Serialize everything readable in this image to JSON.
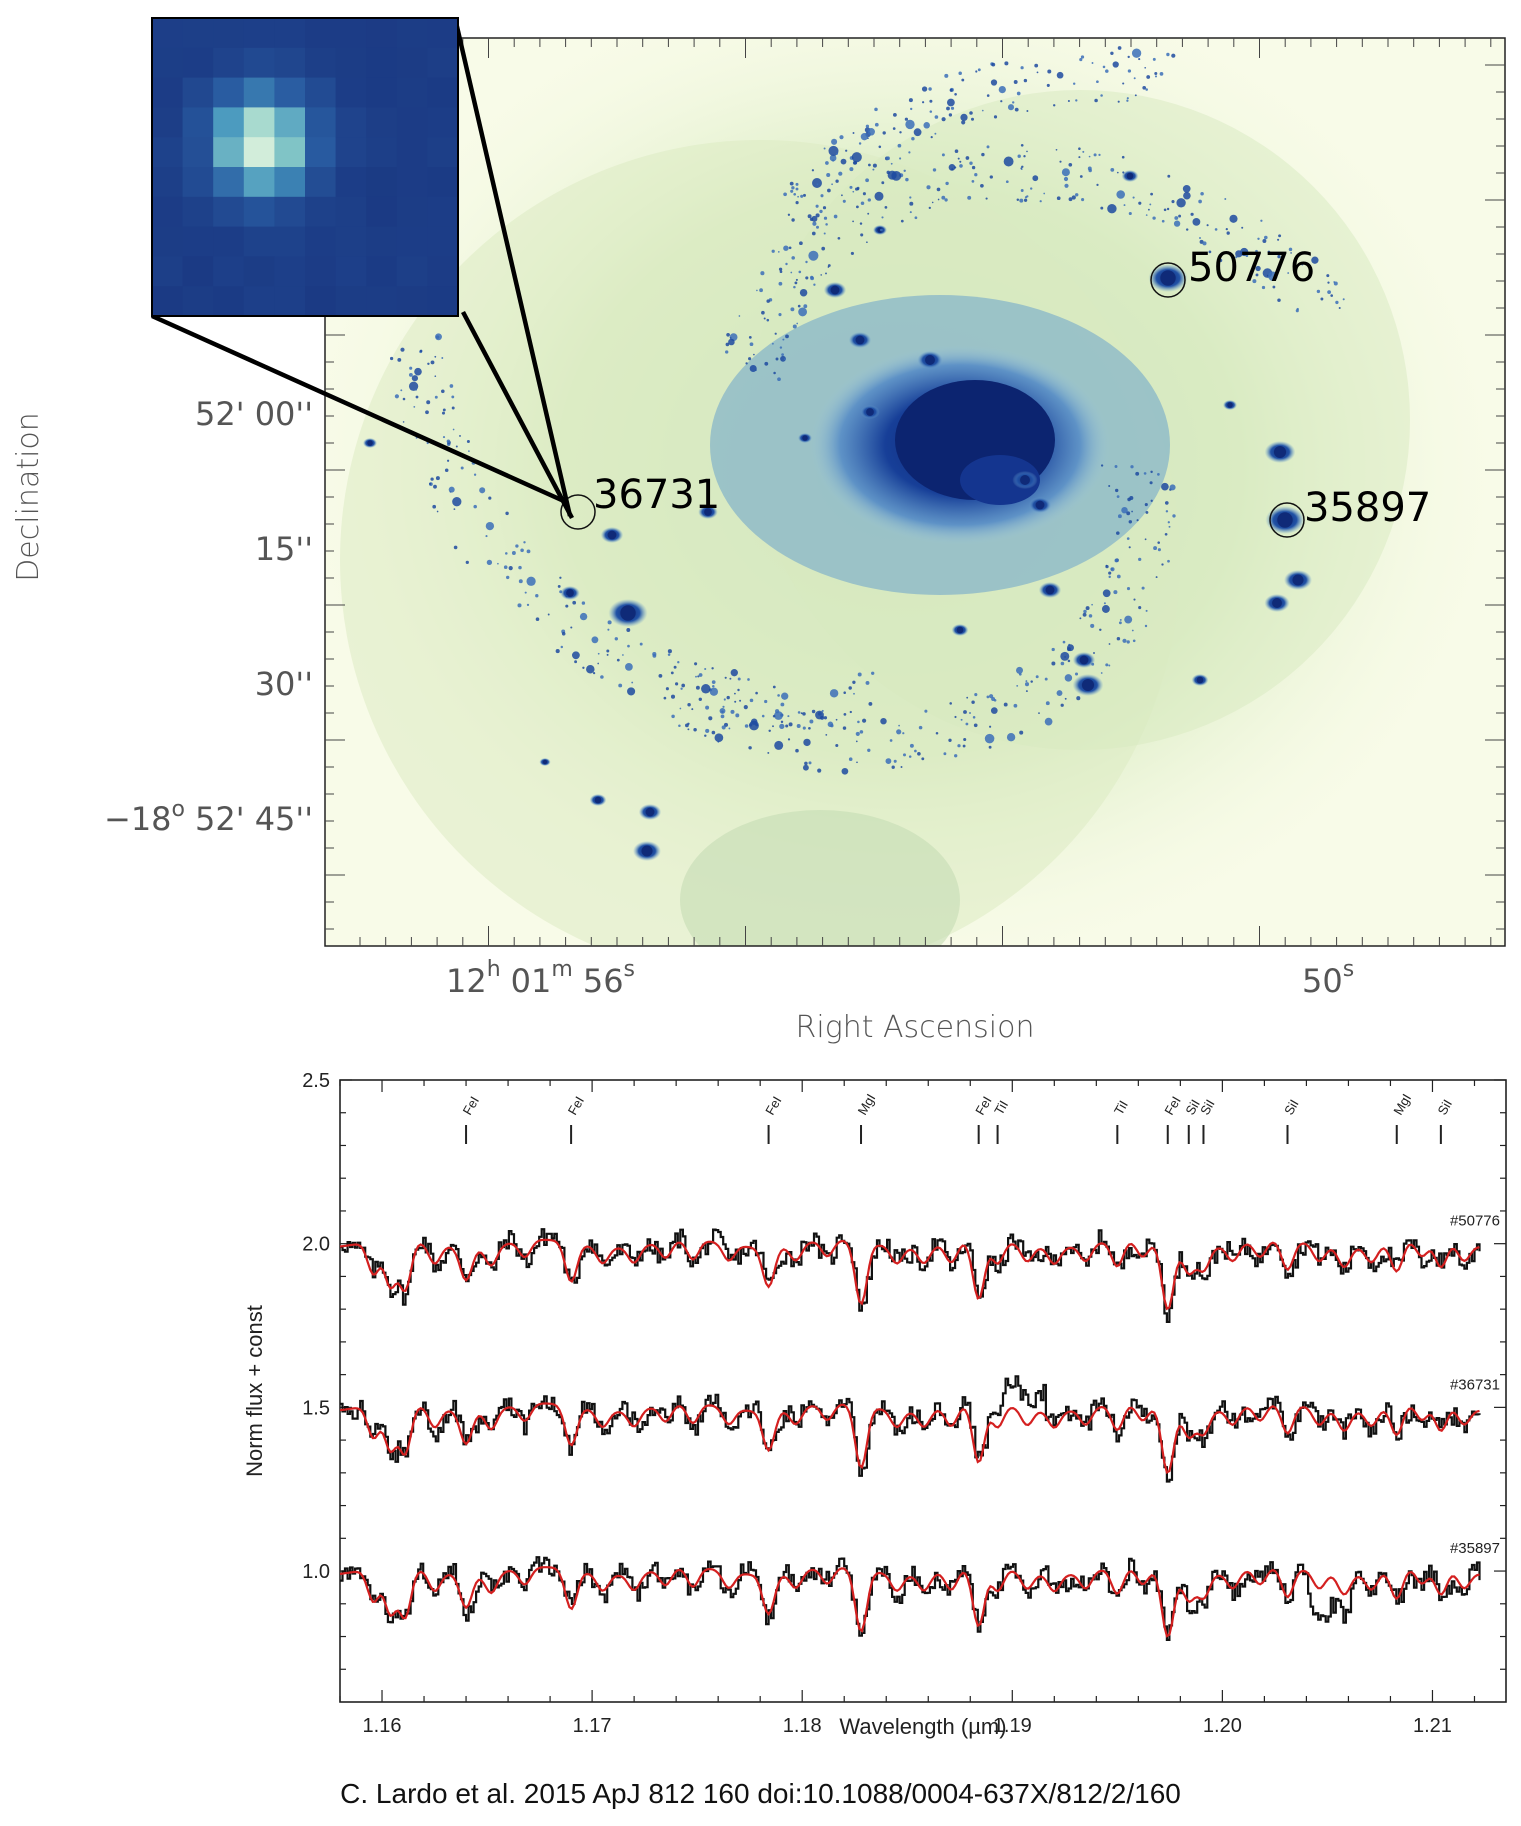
{
  "image_panel": {
    "axis_labels": {
      "x": "Right Ascension",
      "y": "Declination"
    },
    "dec_ticks": [
      {
        "label": "52' 00''",
        "dec_arcsec": 0
      },
      {
        "label": "15''",
        "dec_arcsec": -15
      },
      {
        "label": "30''",
        "dec_arcsec": -30
      },
      {
        "label": "52' 45''",
        "prefix": "−18",
        "sup": "o",
        "dec_arcsec": -45
      }
    ],
    "ra_ticks": [
      {
        "h": "12",
        "m": "01",
        "s": "56",
        "sec": 56
      },
      {
        "label": "50",
        "sup": "s",
        "sec": 50
      }
    ],
    "sources": [
      {
        "id": "50776",
        "ra_sec": 51.05,
        "dec_arcsec": 14.5
      },
      {
        "id": "36731",
        "ra_sec": 55.85,
        "dec_arcsec": -11.6
      },
      {
        "id": "35897",
        "ra_sec": 50.1,
        "dec_arcsec": -12.3
      }
    ],
    "inset": {
      "zoom_of": "36731"
    },
    "colors": {
      "background": "#f8fbe8",
      "halo": "#dcedc4",
      "cluster": "#1a3a8c",
      "core": "#0f2a75"
    }
  },
  "chart_data": {
    "type": "line",
    "xlabel": "Wavelength (µm)",
    "ylabel": "Norm flux + const",
    "xlim": [
      1.158,
      1.2135
    ],
    "ylim": [
      0.6,
      2.5
    ],
    "x_ticks": [
      1.16,
      1.17,
      1.18,
      1.19,
      1.2,
      1.21
    ],
    "x_tick_labels": [
      "1.16",
      "1.17",
      "1.18",
      "1.19",
      "1.20",
      "1.21"
    ],
    "y_ticks": [
      1.0,
      1.5,
      2.0,
      2.5
    ],
    "y_tick_labels": [
      "1.0",
      "1.5",
      "2.0",
      "2.5"
    ],
    "line_ids": [
      {
        "label": "FeI",
        "x": 1.164
      },
      {
        "label": "FeI",
        "x": 1.169
      },
      {
        "label": "FeI",
        "x": 1.1784
      },
      {
        "label": "MgI",
        "x": 1.1828
      },
      {
        "label": "FeI",
        "x": 1.1884
      },
      {
        "label": "TiI",
        "x": 1.1893
      },
      {
        "label": "TiI",
        "x": 1.195
      },
      {
        "label": "FeI",
        "x": 1.1974
      },
      {
        "label": "SiI",
        "x": 1.1984
      },
      {
        "label": "SiI",
        "x": 1.1991
      },
      {
        "label": "SiI",
        "x": 1.2031
      },
      {
        "label": "MgI",
        "x": 1.2083
      },
      {
        "label": "SiI",
        "x": 1.2104
      }
    ],
    "series": [
      {
        "name": "#50776",
        "offset": 2.0,
        "observed_color": "#111111",
        "model_color": "#d42020"
      },
      {
        "name": "#36731",
        "offset": 1.5,
        "observed_color": "#111111",
        "model_color": "#d42020"
      },
      {
        "name": "#35897",
        "offset": 1.0,
        "observed_color": "#111111",
        "model_color": "#d42020"
      }
    ]
  },
  "caption": "C. Lardo et al. 2015 ApJ 812 160 doi:10.1088/0004-637X/812/2/160"
}
